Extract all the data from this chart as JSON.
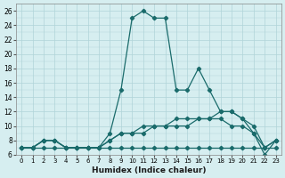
{
  "xlabel": "Humidex (Indice chaleur)",
  "ylabel": "",
  "bg_color": "#d6eef0",
  "grid_color": "#b0d4d8",
  "line_color": "#1a6b6b",
  "xlim": [
    -0.5,
    23.5
  ],
  "ylim": [
    6,
    27
  ],
  "yticks": [
    6,
    8,
    10,
    12,
    14,
    16,
    18,
    20,
    22,
    24,
    26
  ],
  "xticks": [
    0,
    1,
    2,
    3,
    4,
    5,
    6,
    7,
    8,
    9,
    10,
    11,
    12,
    13,
    14,
    15,
    16,
    17,
    18,
    19,
    20,
    21,
    22,
    23
  ],
  "lines": [
    {
      "x": [
        0,
        1,
        2,
        3,
        4,
        5,
        6,
        7,
        8,
        9,
        10,
        11,
        12,
        13,
        14,
        15,
        16,
        17,
        18,
        19,
        20,
        21,
        22,
        23
      ],
      "y": [
        7,
        7,
        8,
        8,
        7,
        7,
        7,
        7,
        9,
        15,
        25,
        26,
        25,
        25,
        15,
        15,
        18,
        15,
        12,
        12,
        11,
        9,
        6,
        8
      ]
    },
    {
      "x": [
        0,
        1,
        2,
        3,
        4,
        5,
        6,
        7,
        8,
        9,
        10,
        11,
        12,
        13,
        14,
        15,
        16,
        17,
        18,
        19,
        20,
        21,
        22,
        23
      ],
      "y": [
        7,
        7,
        8,
        8,
        7,
        7,
        7,
        7,
        8,
        9,
        9,
        10,
        10,
        10,
        11,
        11,
        11,
        11,
        12,
        12,
        11,
        10,
        7,
        8
      ]
    },
    {
      "x": [
        0,
        1,
        2,
        3,
        4,
        5,
        6,
        7,
        8,
        9,
        10,
        11,
        12,
        13,
        14,
        15,
        16,
        17,
        18,
        19,
        20,
        21,
        22,
        23
      ],
      "y": [
        7,
        7,
        8,
        8,
        7,
        7,
        7,
        7,
        8,
        9,
        9,
        9,
        10,
        10,
        10,
        10,
        11,
        11,
        11,
        10,
        10,
        9,
        7,
        8
      ]
    },
    {
      "x": [
        0,
        1,
        2,
        3,
        4,
        5,
        6,
        7,
        8,
        9,
        10,
        11,
        12,
        13,
        14,
        15,
        16,
        17,
        18,
        19,
        20,
        21,
        22,
        23
      ],
      "y": [
        7,
        7,
        7,
        7,
        7,
        7,
        7,
        7,
        7,
        7,
        7,
        7,
        7,
        7,
        7,
        7,
        7,
        7,
        7,
        7,
        7,
        7,
        7,
        7
      ]
    }
  ]
}
